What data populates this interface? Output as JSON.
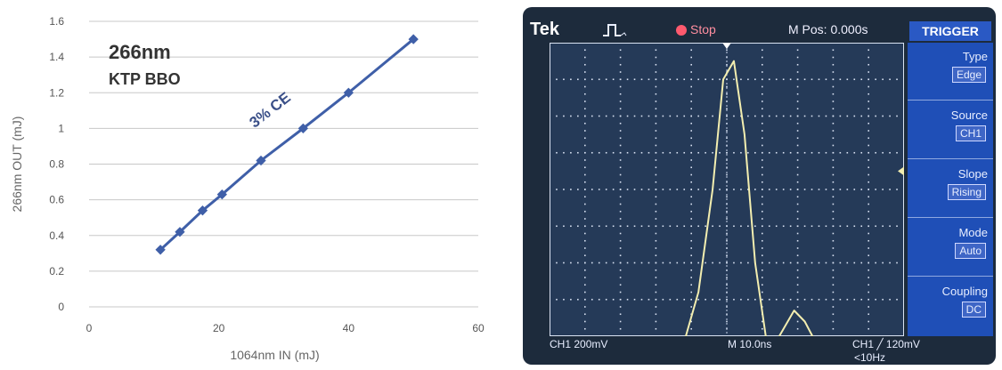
{
  "chart_data": {
    "type": "line",
    "annotation_title": "266nm",
    "annotation_subtitle": "KTP BBO",
    "annotation_line": "3% CE",
    "xlabel": "1064nm IN (mJ)",
    "ylabel": "266nm OUT (mJ)",
    "xlim": [
      0,
      60
    ],
    "ylim": [
      0,
      1.6
    ],
    "x_ticks": [
      0,
      20,
      40,
      60
    ],
    "y_ticks": [
      "0",
      "0.2",
      "0.4",
      "0.6",
      "0.8",
      "1",
      "1.2",
      "1.4",
      "1.6"
    ],
    "grid": "horizontal",
    "series": [
      {
        "color": "#3f5fa8",
        "x": [
          11,
          14,
          17.5,
          20.5,
          26.5,
          33,
          40,
          50
        ],
        "y": [
          0.32,
          0.42,
          0.54,
          0.63,
          0.82,
          1.0,
          1.2,
          1.5
        ]
      }
    ]
  },
  "scope": {
    "brand": "Tek",
    "state": "Stop",
    "mpos": "M Pos: 0.000s",
    "trigger_menu": {
      "title": "TRIGGER",
      "items": [
        {
          "label": "Type",
          "value": "Edge"
        },
        {
          "label": "Source",
          "value": "CH1"
        },
        {
          "label": "Slope",
          "value": "Rising"
        },
        {
          "label": "Mode",
          "value": "Auto"
        },
        {
          "label": "Coupling",
          "value": "DC"
        }
      ]
    },
    "ch1_scale": "CH1  200mV",
    "timebase": "M 10.0ns",
    "trigger_level": "CH1 ╱ 120mV",
    "trigger_freq": "<10Hz",
    "ch1_marker": "1",
    "trace_color": "#f3eeb0",
    "waveform": {
      "x_div": [
        0,
        1,
        2,
        3,
        3.8,
        4.2,
        4.6,
        4.9,
        5.2,
        5.5,
        5.8,
        6.1,
        6.3,
        6.6,
        6.9,
        7.2,
        7.5,
        8,
        9,
        10
      ],
      "y_div": [
        -4.2,
        -4.2,
        -4.25,
        -4.2,
        -4.15,
        -2.8,
        0,
        3.0,
        3.5,
        1.5,
        -2.0,
        -4.0,
        -4.3,
        -3.8,
        -3.3,
        -3.6,
        -4.15,
        -4.2,
        -4.25,
        -4.2
      ]
    }
  }
}
